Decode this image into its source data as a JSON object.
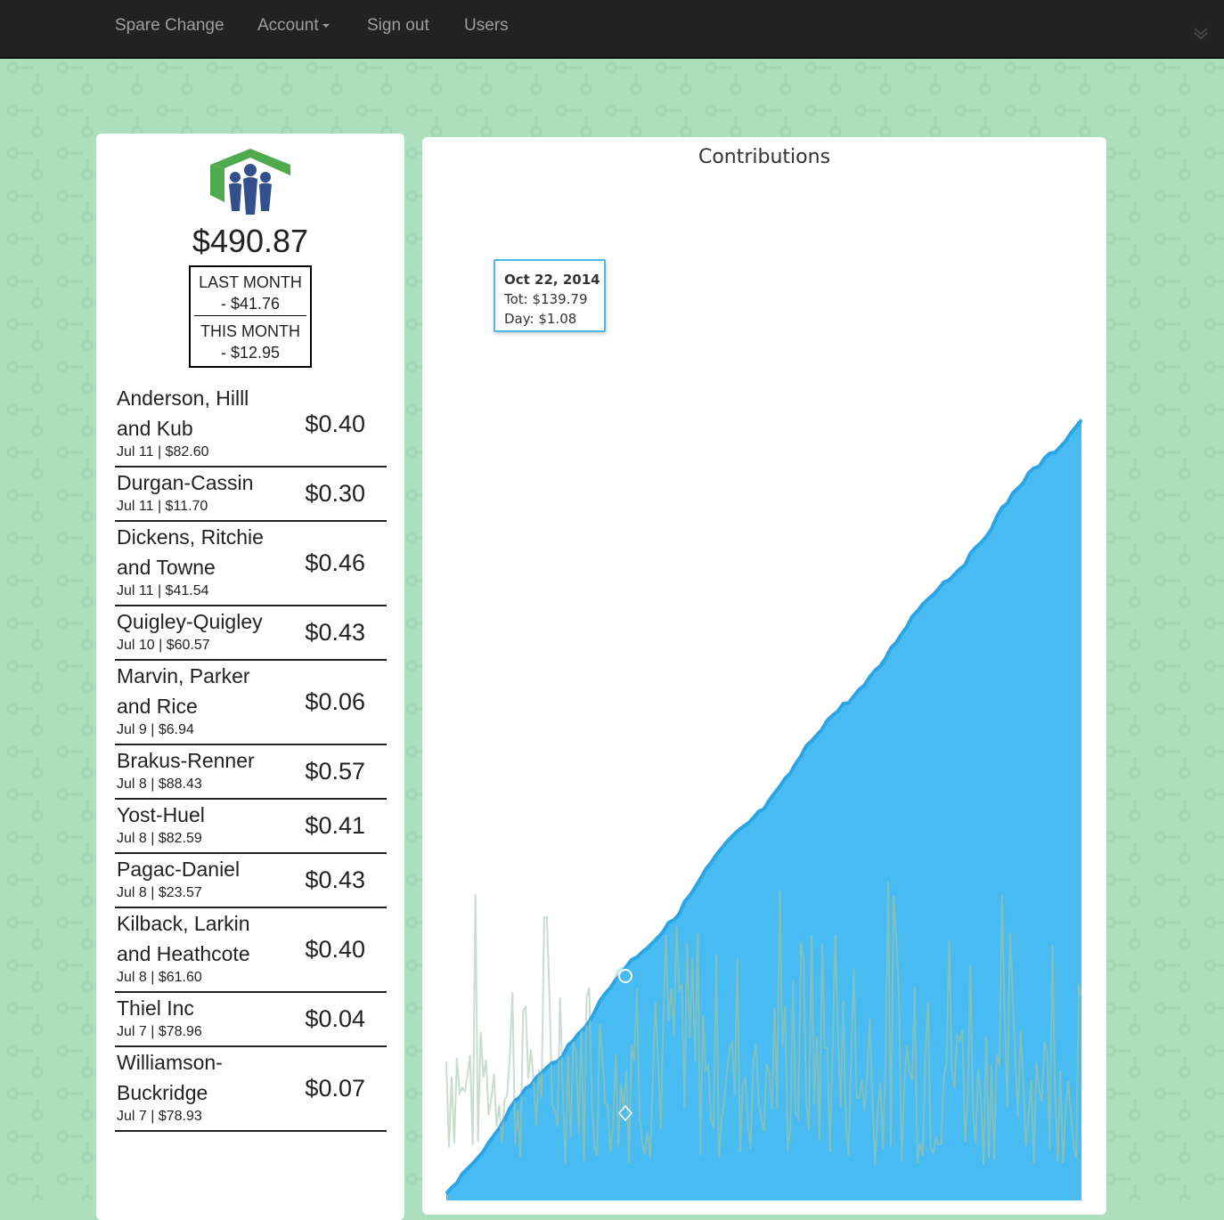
{
  "nav": {
    "brand": "Spare Change",
    "account": "Account",
    "sign_out": "Sign out",
    "users": "Users"
  },
  "summary": {
    "total": "$490.87",
    "last_month_label": "LAST MONTH",
    "last_month_value": "- $41.76",
    "this_month_label": "THIS MONTH",
    "this_month_value": "- $12.95"
  },
  "transactions": [
    {
      "name": "Anderson, Hilll and Kub",
      "meta": "Jul 11 | $82.60",
      "amount": "$0.40"
    },
    {
      "name": "Durgan-Cassin",
      "meta": "Jul 11 | $11.70",
      "amount": "$0.30"
    },
    {
      "name": "Dickens, Ritchie and Towne",
      "meta": "Jul 11 | $41.54",
      "amount": "$0.46"
    },
    {
      "name": "Quigley-Quigley",
      "meta": "Jul 10 | $60.57",
      "amount": "$0.43"
    },
    {
      "name": "Marvin, Parker and Rice",
      "meta": "Jul 9 | $6.94",
      "amount": "$0.06"
    },
    {
      "name": "Brakus-Renner",
      "meta": "Jul 8 | $88.43",
      "amount": "$0.57"
    },
    {
      "name": "Yost-Huel",
      "meta": "Jul 8 | $82.59",
      "amount": "$0.41"
    },
    {
      "name": "Pagac-Daniel",
      "meta": "Jul 8 | $23.57",
      "amount": "$0.43"
    },
    {
      "name": "Kilback, Larkin and Heathcote",
      "meta": "Jul 8 | $61.60",
      "amount": "$0.40"
    },
    {
      "name": "Thiel Inc",
      "meta": "Jul 7 | $78.96",
      "amount": "$0.04"
    },
    {
      "name": "Williamson-Buckridge",
      "meta": "Jul 7 | $78.93",
      "amount": "$0.07"
    }
  ],
  "chart_data": {
    "type": "area",
    "title": "Contributions",
    "series": [
      {
        "name": "Tot",
        "kind": "cumulative area",
        "color": "#48bbf2"
      },
      {
        "name": "Day",
        "kind": "daily line",
        "color": "#8fc2b0"
      }
    ],
    "tooltip": {
      "date": "Oct 22, 2014",
      "tot": "Tot: $139.79",
      "day": "Day: $1.08"
    }
  },
  "colors": {
    "navbar": "#222222",
    "page_background": "#acdfbb",
    "area_fill": "#48bbf2",
    "area_stroke": "#2aa6e6",
    "day_line": "#8fc2b0"
  }
}
